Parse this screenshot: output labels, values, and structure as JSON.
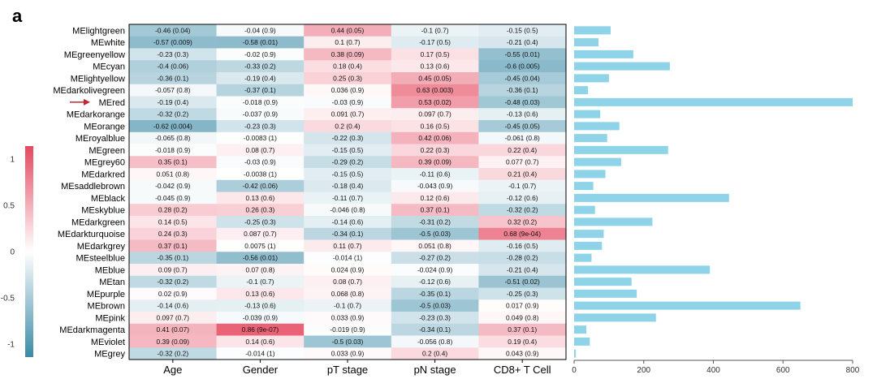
{
  "panel_label": "a",
  "chart_data": [
    {
      "type": "heatmap",
      "rows": [
        "MElightgreen",
        "MEwhite",
        "MEgreenyellow",
        "MEcyan",
        "MElightyellow",
        "MEdarkolivegreen",
        "MEred",
        "MEdarkorange",
        "MEorange",
        "MEroyalblue",
        "MEgreen",
        "MEgrey60",
        "MEdarkred",
        "MEsaddlebrown",
        "MEblack",
        "MEskyblue",
        "MEdarkgreen",
        "MEdarkturquoise",
        "MEdarkgrey",
        "MEsteelblue",
        "MEblue",
        "MEtan",
        "MEpurple",
        "MEbrown",
        "MEpink",
        "MEdarkmagenta",
        "MEviolet",
        "MEgrey"
      ],
      "columns": [
        "Age",
        "Gender",
        "pT stage",
        "pN stage",
        "CD8+ T Cell"
      ],
      "highlighted_row": "MEred",
      "values": [
        [
          -0.46,
          -0.04,
          0.44,
          -0.1,
          -0.15
        ],
        [
          -0.57,
          -0.58,
          0.1,
          -0.17,
          -0.21
        ],
        [
          -0.23,
          -0.02,
          0.38,
          0.17,
          -0.55
        ],
        [
          -0.4,
          -0.33,
          0.18,
          0.13,
          -0.6
        ],
        [
          -0.36,
          -0.19,
          0.25,
          0.45,
          -0.45
        ],
        [
          -0.057,
          -0.37,
          0.036,
          0.63,
          -0.36
        ],
        [
          -0.19,
          -0.018,
          -0.03,
          0.53,
          -0.48
        ],
        [
          -0.32,
          -0.037,
          0.091,
          0.097,
          -0.13
        ],
        [
          -0.62,
          -0.23,
          0.2,
          0.16,
          -0.45
        ],
        [
          -0.065,
          -0.0083,
          -0.22,
          0.42,
          -0.061
        ],
        [
          -0.018,
          0.08,
          -0.15,
          0.22,
          0.22
        ],
        [
          0.35,
          -0.03,
          -0.29,
          0.39,
          0.077
        ],
        [
          0.051,
          -0.0038,
          -0.15,
          -0.11,
          0.21
        ],
        [
          -0.042,
          -0.42,
          -0.18,
          -0.043,
          -0.1
        ],
        [
          -0.045,
          0.13,
          -0.11,
          0.12,
          -0.12
        ],
        [
          0.28,
          0.26,
          -0.046,
          0.37,
          -0.32
        ],
        [
          0.14,
          -0.25,
          -0.14,
          -0.31,
          0.32
        ],
        [
          0.24,
          0.087,
          -0.34,
          -0.5,
          0.68
        ],
        [
          0.37,
          0.0075,
          0.11,
          0.051,
          -0.16
        ],
        [
          -0.35,
          -0.56,
          -0.014,
          -0.27,
          -0.28
        ],
        [
          0.09,
          0.07,
          0.024,
          -0.024,
          -0.21
        ],
        [
          -0.32,
          -0.1,
          0.08,
          -0.12,
          -0.51
        ],
        [
          0.02,
          0.13,
          0.068,
          -0.35,
          -0.25
        ],
        [
          -0.14,
          -0.13,
          -0.1,
          -0.5,
          0.017
        ],
        [
          0.097,
          -0.039,
          0.033,
          -0.23,
          0.049
        ],
        [
          0.41,
          0.86,
          -0.019,
          -0.34,
          0.37
        ],
        [
          0.39,
          0.14,
          -0.5,
          -0.056,
          0.19
        ],
        [
          -0.32,
          -0.014,
          0.033,
          0.2,
          0.043
        ]
      ],
      "cell_labels": [
        [
          "-0.46 (0.04)",
          "-0.04 (0.9)",
          "0.44 (0.05)",
          "-0.1 (0.7)",
          "-0.15 (0.5)"
        ],
        [
          "-0.57 (0.009)",
          "-0.58 (0.01)",
          "0.1 (0.7)",
          "-0.17 (0.5)",
          "-0.21 (0.4)"
        ],
        [
          "-0.23 (0.3)",
          "-0.02 (0.9)",
          "0.38 (0.09)",
          "0.17 (0.5)",
          "-0.55 (0.01)"
        ],
        [
          "-0.4 (0.06)",
          "-0.33 (0.2)",
          "0.18 (0.4)",
          "0.13 (0.6)",
          "-0.6 (0.005)"
        ],
        [
          "-0.36 (0.1)",
          "-0.19 (0.4)",
          "0.25 (0.3)",
          "0.45 (0.05)",
          "-0.45 (0.04)"
        ],
        [
          "-0.057 (0.8)",
          "-0.37 (0.1)",
          "0.036 (0.9)",
          "0.63 (0.003)",
          "-0.36 (0.1)"
        ],
        [
          "-0.19 (0.4)",
          "-0.018 (0.9)",
          "-0.03 (0.9)",
          "0.53 (0.02)",
          "-0.48 (0.03)"
        ],
        [
          "-0.32 (0.2)",
          "-0.037 (0.9)",
          "0.091 (0.7)",
          "0.097 (0.7)",
          "-0.13 (0.6)"
        ],
        [
          "-0.62 (0.004)",
          "-0.23 (0.3)",
          "0.2 (0.4)",
          "0.16 (0.5)",
          "-0.45 (0.05)"
        ],
        [
          "-0.065 (0.8)",
          "-0.0083 (1)",
          "-0.22 (0.3)",
          "0.42 (0.06)",
          "-0.061 (0.8)"
        ],
        [
          "-0.018 (0.9)",
          "0.08 (0.7)",
          "-0.15 (0.5)",
          "0.22 (0.3)",
          "0.22 (0.4)"
        ],
        [
          "0.35 (0.1)",
          "-0.03 (0.9)",
          "-0.29 (0.2)",
          "0.39 (0.09)",
          "0.077 (0.7)"
        ],
        [
          "0.051 (0.8)",
          "-0.0038 (1)",
          "-0.15 (0.5)",
          "-0.11 (0.6)",
          "0.21 (0.4)"
        ],
        [
          "-0.042 (0.9)",
          "-0.42 (0.06)",
          "-0.18 (0.4)",
          "-0.043 (0.9)",
          "-0.1 (0.7)"
        ],
        [
          "-0.045 (0.9)",
          "0.13 (0.6)",
          "-0.11 (0.7)",
          "0.12 (0.6)",
          "-0.12 (0.6)"
        ],
        [
          "0.28 (0.2)",
          "0.26 (0.3)",
          "-0.046 (0.8)",
          "0.37 (0.1)",
          "-0.32 (0.2)"
        ],
        [
          "0.14 (0.5)",
          "-0.25 (0.3)",
          "-0.14 (0.6)",
          "-0.31 (0.2)",
          "0.32 (0.2)"
        ],
        [
          "0.24 (0.3)",
          "0.087 (0.7)",
          "-0.34 (0.1)",
          "-0.5 (0.03)",
          "0.68 (9e-04)"
        ],
        [
          "0.37 (0.1)",
          "0.0075 (1)",
          "0.11 (0.7)",
          "0.051 (0.8)",
          "-0.16 (0.5)"
        ],
        [
          "-0.35 (0.1)",
          "-0.56 (0.01)",
          "-0.014 (1)",
          "-0.27 (0.2)",
          "-0.28 (0.2)"
        ],
        [
          "0.09 (0.7)",
          "0.07 (0.8)",
          "0.024 (0.9)",
          "-0.024 (0.9)",
          "-0.21 (0.4)"
        ],
        [
          "-0.32 (0.2)",
          "-0.1 (0.7)",
          "0.08 (0.7)",
          "-0.12 (0.6)",
          "-0.51 (0.02)"
        ],
        [
          "0.02 (0.9)",
          "0.13 (0.6)",
          "0.068 (0.8)",
          "-0.35 (0.1)",
          "-0.25 (0.3)"
        ],
        [
          "-0.14 (0.6)",
          "-0.13 (0.6)",
          "-0.1 (0.7)",
          "-0.5 (0.03)",
          "0.017 (0.9)"
        ],
        [
          "0.097 (0.7)",
          "-0.039 (0.9)",
          "0.033 (0.9)",
          "-0.23 (0.3)",
          "0.049 (0.8)"
        ],
        [
          "0.41 (0.07)",
          "0.86 (9e-07)",
          "-0.019 (0.9)",
          "-0.34 (0.1)",
          "0.37 (0.1)"
        ],
        [
          "0.39 (0.09)",
          "0.14 (0.6)",
          "-0.5 (0.03)",
          "-0.056 (0.8)",
          "0.19 (0.4)"
        ],
        [
          "-0.32 (0.2)",
          "-0.014 (1)",
          "0.033 (0.9)",
          "0.2 (0.4)",
          "0.043 (0.9)"
        ]
      ],
      "color_scale": {
        "range": [
          -1,
          1
        ],
        "ticks": [
          1,
          0.5,
          0,
          -0.5,
          -1
        ],
        "tick_labels": [
          "1",
          "0.5",
          "0",
          "-0.5",
          "-1"
        ],
        "negative_color": "#3a8aa6",
        "mid_color": "#ffffff",
        "positive_color": "#e5485f"
      }
    },
    {
      "type": "bar",
      "orientation": "horizontal",
      "categories": [
        "MElightgreen",
        "MEwhite",
        "MEgreenyellow",
        "MEcyan",
        "MElightyellow",
        "MEdarkolivegreen",
        "MEred",
        "MEdarkorange",
        "MEorange",
        "MEroyalblue",
        "MEgreen",
        "MEgrey60",
        "MEdarkred",
        "MEsaddlebrown",
        "MEblack",
        "MEskyblue",
        "MEdarkgreen",
        "MEdarkturquoise",
        "MEdarkgrey",
        "MEsteelblue",
        "MEblue",
        "MEtan",
        "MEpurple",
        "MEbrown",
        "MEpink",
        "MEdarkmagenta",
        "MEviolet",
        "MEgrey"
      ],
      "values": [
        105,
        70,
        170,
        275,
        100,
        40,
        800,
        75,
        130,
        95,
        270,
        135,
        90,
        55,
        445,
        60,
        225,
        85,
        80,
        50,
        390,
        165,
        180,
        650,
        235,
        35,
        45,
        5
      ],
      "xlim": [
        0,
        800
      ],
      "xticks": [
        0,
        200,
        400,
        600,
        800
      ],
      "bar_color": "#8fd3e8"
    }
  ]
}
